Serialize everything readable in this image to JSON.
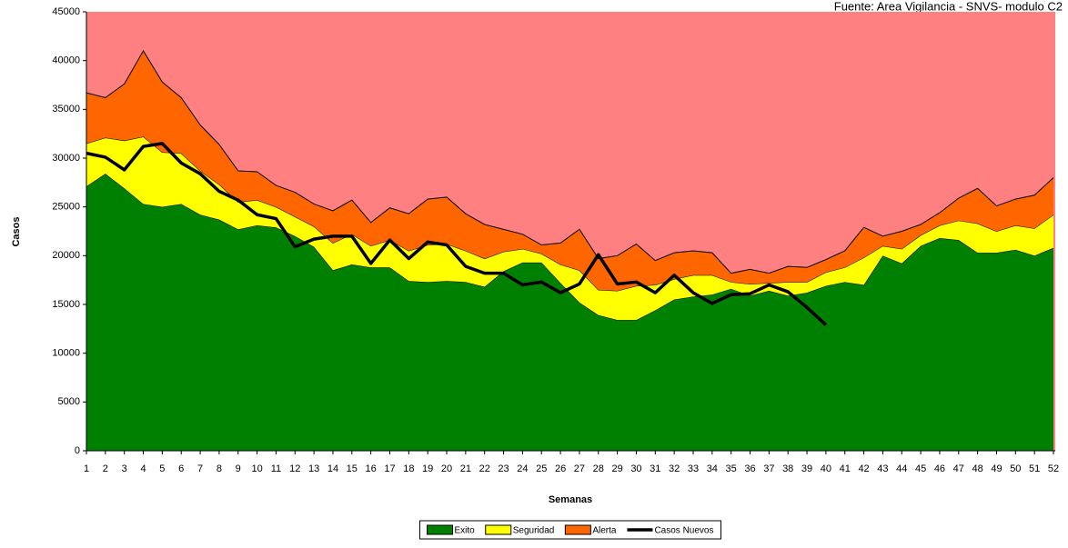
{
  "chart_data": {
    "type": "stacked_area_line",
    "title": "Fuente: Area Vigilancia - SNVS- modulo C2",
    "x_label": "Semanas",
    "y_label": "Casos",
    "categories": [
      "1",
      "2",
      "3",
      "4",
      "5",
      "6",
      "7",
      "8",
      "9",
      "10",
      "11",
      "12",
      "13",
      "14",
      "15",
      "16",
      "17",
      "18",
      "19",
      "20",
      "21",
      "22",
      "23",
      "24",
      "25",
      "26",
      "27",
      "28",
      "29",
      "30",
      "31",
      "32",
      "33",
      "34",
      "35",
      "36",
      "37",
      "38",
      "39",
      "40",
      "41",
      "42",
      "43",
      "44",
      "45",
      "46",
      "47",
      "48",
      "49",
      "50",
      "51",
      "52"
    ],
    "series": [
      {
        "name": "Exito",
        "color": "#008000",
        "kind": "area",
        "values": [
          27100,
          28400,
          26900,
          25300,
          25000,
          25300,
          24200,
          23700,
          22700,
          23100,
          22900,
          22000,
          20900,
          18500,
          19100,
          18800,
          18800,
          17400,
          17300,
          17400,
          17300,
          16800,
          18400,
          19300,
          19300,
          17200,
          15200,
          13900,
          13400,
          13400,
          14400,
          15500,
          15800,
          16000,
          16600,
          15900,
          16400,
          15900,
          16200,
          16900,
          17300,
          17000,
          20000,
          19200,
          21000,
          21800,
          21600,
          20300,
          20300,
          20600,
          20000,
          20800
        ]
      },
      {
        "name": "Seguridad",
        "color": "#ffff00",
        "kind": "area",
        "values": [
          4400,
          3700,
          4900,
          6900,
          5600,
          5200,
          4500,
          3600,
          2800,
          2600,
          2100,
          2000,
          2100,
          2800,
          3100,
          2200,
          2800,
          3100,
          3800,
          3800,
          3200,
          2900,
          2000,
          1400,
          900,
          1900,
          3300,
          2600,
          3000,
          3500,
          2600,
          2100,
          2200,
          2000,
          700,
          1200,
          800,
          1400,
          1100,
          1400,
          1500,
          2800,
          1000,
          1500,
          1100,
          1300,
          2000,
          3000,
          2200,
          2500,
          2800,
          3400
        ]
      },
      {
        "name": "Alerta",
        "color": "#ff6600",
        "kind": "area",
        "values": [
          5200,
          4100,
          5800,
          8800,
          7200,
          5700,
          4700,
          4100,
          3200,
          2900,
          2200,
          2500,
          2300,
          3300,
          3500,
          2400,
          3300,
          3800,
          4700,
          4800,
          3800,
          3500,
          2300,
          1500,
          900,
          2200,
          4200,
          3200,
          3600,
          4300,
          2500,
          2700,
          2500,
          2300,
          900,
          1500,
          1000,
          1600,
          1500,
          1300,
          1700,
          3100,
          1000,
          1800,
          1100,
          1300,
          2300,
          3600,
          2600,
          2700,
          3400,
          3800
        ]
      },
      {
        "name": "Casos Nuevos",
        "color": "#000000",
        "kind": "line",
        "values": [
          30500,
          30100,
          28800,
          31200,
          31500,
          29500,
          28400,
          26600,
          25700,
          24200,
          23800,
          20900,
          21700,
          22000,
          22000,
          19200,
          21600,
          19700,
          21400,
          21100,
          18900,
          18200,
          18200,
          17000,
          17300,
          16200,
          17100,
          20100,
          17100,
          17300,
          16200,
          18000,
          16200,
          15100,
          16000,
          16100,
          17000,
          16300,
          14700,
          12900,
          null,
          null,
          null,
          null,
          null,
          null,
          null,
          null,
          null,
          null,
          null,
          null
        ]
      }
    ],
    "ylim": [
      0,
      45000
    ],
    "yticks": [
      0,
      5000,
      10000,
      15000,
      20000,
      25000,
      30000,
      35000,
      40000,
      45000
    ],
    "background": "#ff8080",
    "legend": "bottom"
  }
}
